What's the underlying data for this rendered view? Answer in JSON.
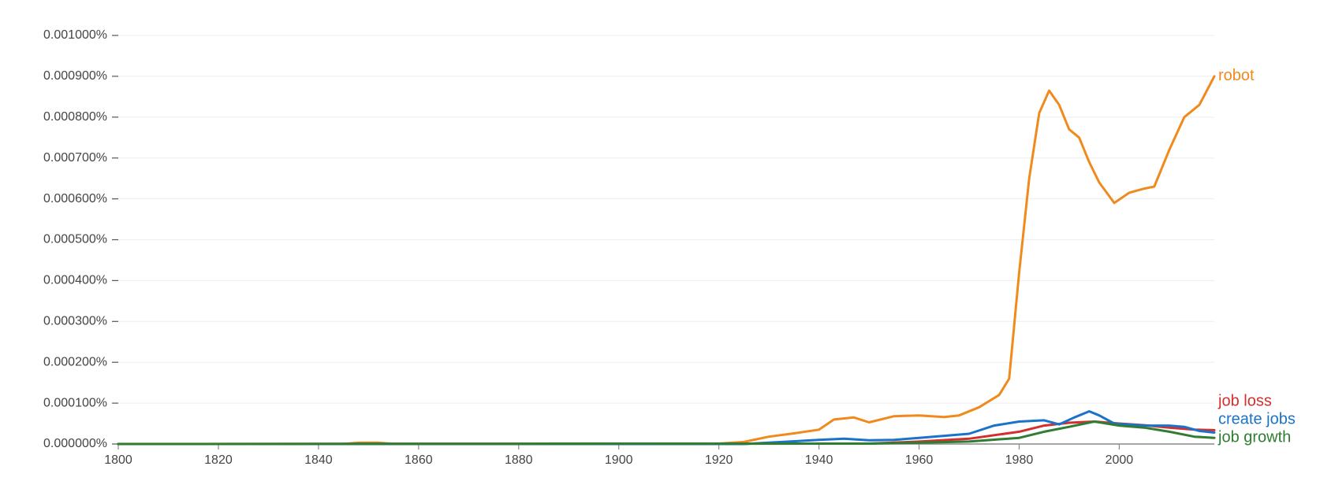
{
  "chart_data": {
    "type": "line",
    "xlim": [
      1800,
      2019
    ],
    "xticks": [
      1800,
      1820,
      1840,
      1860,
      1880,
      1900,
      1920,
      1940,
      1960,
      1980,
      2000
    ],
    "ylim": [
      0,
      0.001
    ],
    "yticks": [
      {
        "value": 0,
        "label": "0.000000%"
      },
      {
        "value": 0.0001,
        "label": "0.000100%"
      },
      {
        "value": 0.0002,
        "label": "0.000200%"
      },
      {
        "value": 0.0003,
        "label": "0.000300%"
      },
      {
        "value": 0.0004,
        "label": "0.000400%"
      },
      {
        "value": 0.0005,
        "label": "0.000500%"
      },
      {
        "value": 0.0006,
        "label": "0.000600%"
      },
      {
        "value": 0.0007,
        "label": "0.000700%"
      },
      {
        "value": 0.0008,
        "label": "0.000800%"
      },
      {
        "value": 0.0009,
        "label": "0.000900%"
      },
      {
        "value": 0.001,
        "label": "0.001000%"
      }
    ],
    "grid": true,
    "series": [
      {
        "name": "robot",
        "color": "#f08a1c",
        "x": [
          1800,
          1845,
          1848,
          1852,
          1855,
          1920,
          1925,
          1930,
          1935,
          1940,
          1943,
          1947,
          1950,
          1955,
          1960,
          1965,
          1968,
          1972,
          1976,
          1978,
          1980,
          1982,
          1984,
          1986,
          1988,
          1990,
          1992,
          1994,
          1996,
          1999,
          2002,
          2005,
          2007,
          2010,
          2013,
          2016,
          2019
        ],
        "values": [
          2e-07,
          2e-07,
          3e-06,
          3e-06,
          2e-07,
          1e-06,
          5e-06,
          1.8e-05,
          2.6e-05,
          3.5e-05,
          6e-05,
          6.5e-05,
          5.3e-05,
          6.8e-05,
          7e-05,
          6.6e-05,
          7e-05,
          9e-05,
          0.00012,
          0.00016,
          0.00042,
          0.00065,
          0.00081,
          0.000865,
          0.00083,
          0.00077,
          0.00075,
          0.00069,
          0.00064,
          0.00059,
          0.000615,
          0.000625,
          0.00063,
          0.00072,
          0.0008,
          0.00083,
          0.0009
        ]
      },
      {
        "name": "job loss",
        "color": "#d32f2f",
        "x": [
          1800,
          1950,
          1960,
          1970,
          1980,
          1985,
          1990,
          1995,
          2000,
          2005,
          2010,
          2015,
          2019
        ],
        "values": [
          0,
          1e-06,
          6e-06,
          1.3e-05,
          3e-05,
          4.5e-05,
          5.2e-05,
          5.5e-05,
          5e-05,
          4.6e-05,
          4e-05,
          3.5e-05,
          3.4e-05
        ]
      },
      {
        "name": "create jobs",
        "color": "#1a73c8",
        "x": [
          1800,
          1925,
          1940,
          1945,
          1950,
          1955,
          1960,
          1965,
          1970,
          1975,
          1980,
          1985,
          1988,
          1991,
          1994,
          1996,
          1999,
          2005,
          2010,
          2013,
          2016,
          2019
        ],
        "values": [
          0,
          0,
          1e-05,
          1.3e-05,
          9e-06,
          1e-05,
          1.5e-05,
          2e-05,
          2.5e-05,
          4.5e-05,
          5.5e-05,
          5.8e-05,
          4.8e-05,
          6.5e-05,
          8e-05,
          7e-05,
          5e-05,
          4.5e-05,
          4.5e-05,
          4.2e-05,
          3.2e-05,
          2.8e-05
        ]
      },
      {
        "name": "job growth",
        "color": "#2e7d32",
        "x": [
          1800,
          1950,
          1960,
          1970,
          1980,
          1985,
          1990,
          1995,
          2000,
          2005,
          2010,
          2015,
          2019
        ],
        "values": [
          0,
          1e-06,
          3e-06,
          6e-06,
          1.5e-05,
          3e-05,
          4.2e-05,
          5.5e-05,
          4.5e-05,
          4e-05,
          3e-05,
          1.8e-05,
          1.5e-05
        ]
      }
    ]
  }
}
